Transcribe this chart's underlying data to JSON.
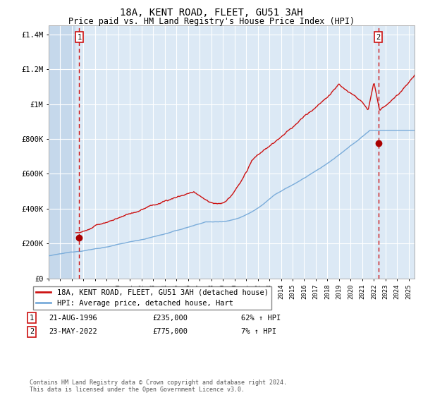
{
  "title": "18A, KENT ROAD, FLEET, GU51 3AH",
  "subtitle": "Price paid vs. HM Land Registry's House Price Index (HPI)",
  "title_fontsize": 10,
  "subtitle_fontsize": 8.5,
  "xlim_start": 1994.0,
  "xlim_end": 2025.5,
  "ylim_min": 0,
  "ylim_max": 1450000,
  "hpi_color": "#7aacda",
  "price_color": "#cc1111",
  "marker_color": "#aa0000",
  "bg_color": "#dce9f5",
  "hatch_color": "#c5d8eb",
  "grid_color": "#ffffff",
  "dashed_line_color": "#cc1111",
  "transaction1_date": 1996.64,
  "transaction1_price": 235000,
  "transaction2_date": 2022.39,
  "transaction2_price": 775000,
  "legend_line1": "18A, KENT ROAD, FLEET, GU51 3AH (detached house)",
  "legend_line2": "HPI: Average price, detached house, Hart",
  "annot1_date": "21-AUG-1996",
  "annot1_price": "£235,000",
  "annot1_hpi": "62% ↑ HPI",
  "annot2_date": "23-MAY-2022",
  "annot2_price": "£775,000",
  "annot2_hpi": "7% ↑ HPI",
  "footer": "Contains HM Land Registry data © Crown copyright and database right 2024.\nThis data is licensed under the Open Government Licence v3.0.",
  "yticks": [
    0,
    200000,
    400000,
    600000,
    800000,
    1000000,
    1200000,
    1400000
  ],
  "ytick_labels": [
    "£0",
    "£200K",
    "£400K",
    "£600K",
    "£800K",
    "£1M",
    "£1.2M",
    "£1.4M"
  ],
  "hatch_end": 1996.3,
  "red_line_start": 1996.3
}
